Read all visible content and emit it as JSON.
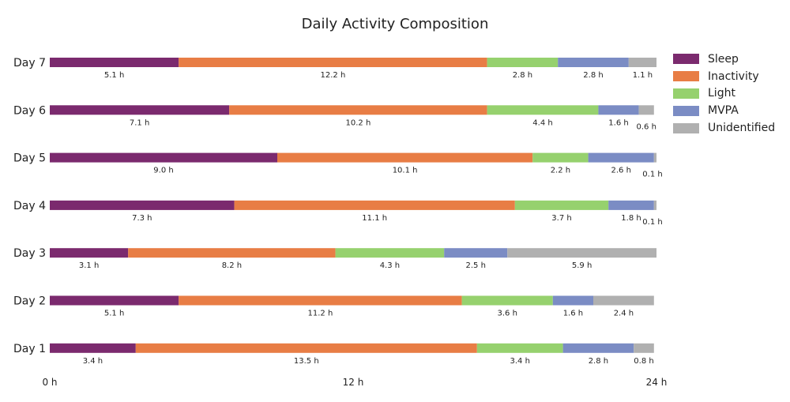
{
  "chart_data": {
    "type": "bar",
    "orientation": "horizontal",
    "stacked": true,
    "title": "Daily Activity Composition",
    "xlabel": "",
    "ylabel": "",
    "xlim": [
      0,
      24
    ],
    "x_ticks": [
      "0 h",
      "12 h",
      "24 h"
    ],
    "categories": [
      "Day 7",
      "Day 6",
      "Day 5",
      "Day 4",
      "Day 3",
      "Day 2",
      "Day 1"
    ],
    "series": [
      {
        "name": "Sleep",
        "color": "#7b2a6e",
        "values": [
          5.1,
          7.1,
          9.0,
          7.3,
          3.1,
          5.1,
          3.4
        ],
        "labels": [
          "5.1 h",
          "7.1 h",
          "9.0 h",
          "7.3 h",
          "3.1 h",
          "5.1 h",
          "3.4 h"
        ]
      },
      {
        "name": "Inactivity",
        "color": "#e87d45",
        "values": [
          12.2,
          10.2,
          10.1,
          11.1,
          8.2,
          11.2,
          13.5
        ],
        "labels": [
          "12.2 h",
          "10.2 h",
          "10.1 h",
          "11.1 h",
          "8.2 h",
          "11.2 h",
          "13.5 h"
        ]
      },
      {
        "name": "Light",
        "color": "#96d16e",
        "values": [
          2.8,
          4.4,
          2.2,
          3.7,
          4.3,
          3.6,
          3.4
        ],
        "labels": [
          "2.8 h",
          "4.4 h",
          "2.2 h",
          "3.7 h",
          "4.3 h",
          "3.6 h",
          "3.4 h"
        ]
      },
      {
        "name": "MVPA",
        "color": "#7b8cc4",
        "values": [
          2.8,
          1.6,
          2.6,
          1.8,
          2.5,
          1.6,
          2.8
        ],
        "labels": [
          "2.8 h",
          "1.6 h",
          "2.6 h",
          "1.8 h",
          "2.5 h",
          "1.6 h",
          "2.8 h"
        ]
      },
      {
        "name": "Unidentified",
        "color": "#b0b0b0",
        "values": [
          1.1,
          0.6,
          0.1,
          0.1,
          5.9,
          2.4,
          0.8
        ],
        "labels": [
          "1.1 h",
          "0.6 h",
          "0.1 h",
          "0.1 h",
          "5.9 h",
          "2.4 h",
          "0.8 h"
        ]
      }
    ],
    "legend_position": "top-right",
    "grid": false
  }
}
